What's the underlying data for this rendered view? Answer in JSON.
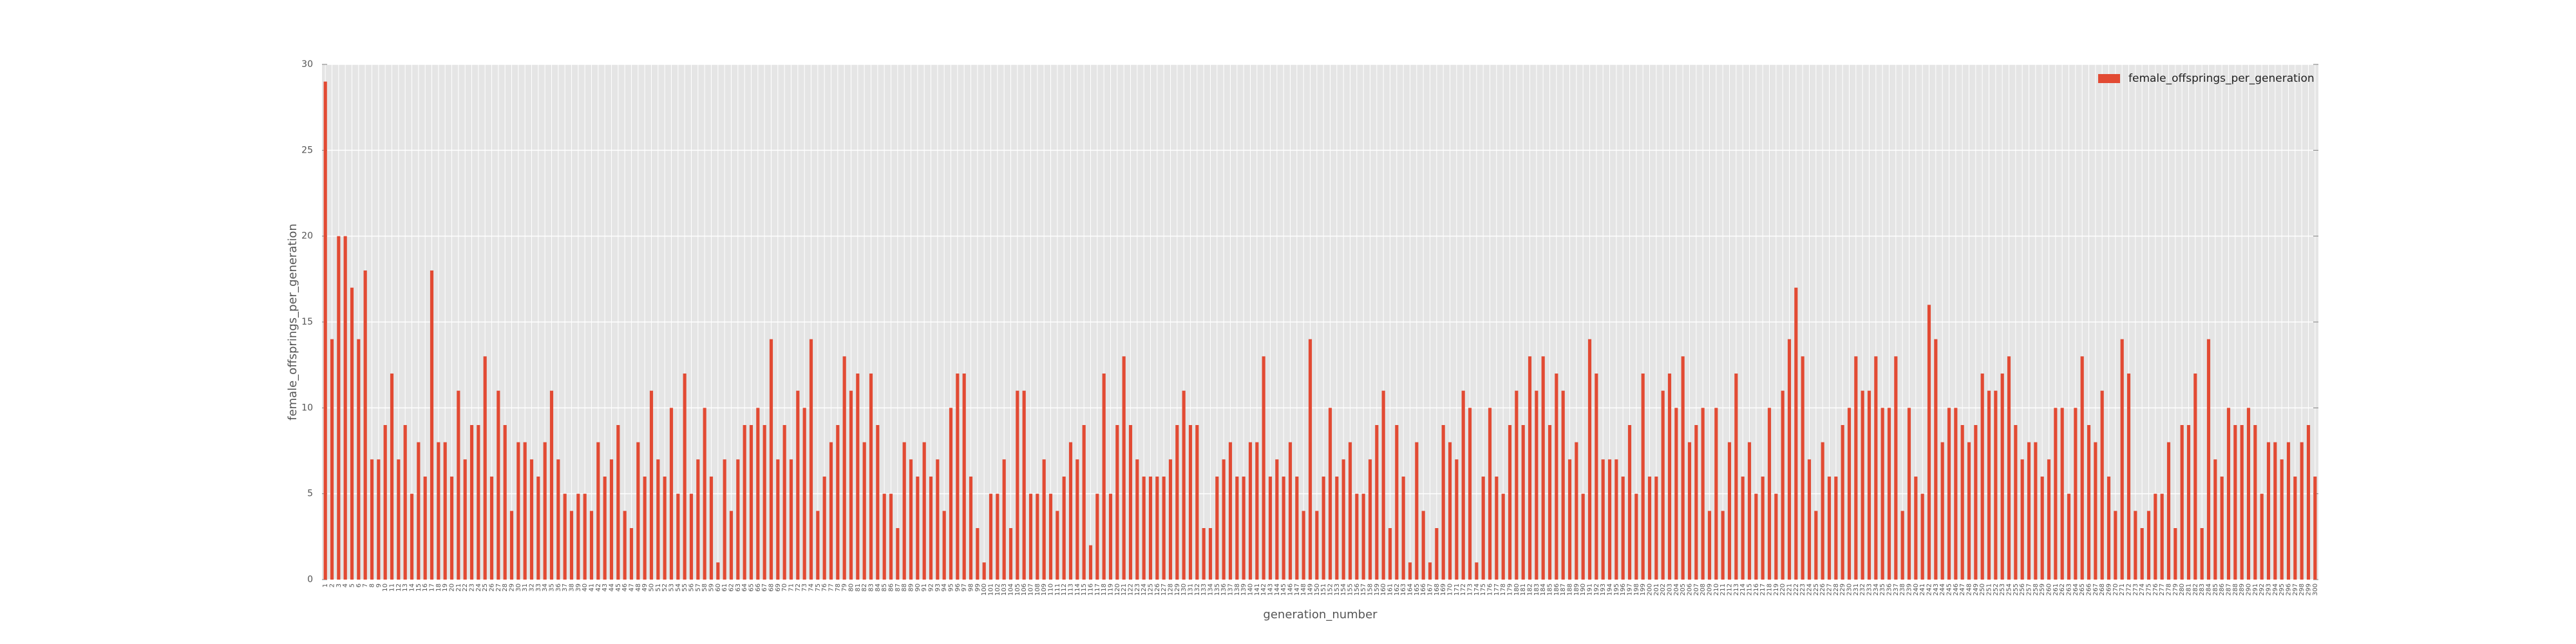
{
  "chart_data": {
    "type": "bar",
    "x_label": "generation_number",
    "y_label": "female_offsprings_per_generation",
    "categories": [
      1,
      2,
      3,
      4,
      5,
      6,
      7,
      8,
      9,
      10,
      11,
      12,
      13,
      14,
      15,
      16,
      17,
      18,
      19,
      20,
      21,
      22,
      23,
      24,
      25,
      26,
      27,
      28,
      29,
      30,
      31,
      32,
      33,
      34,
      35,
      36,
      37,
      38,
      39,
      40,
      41,
      42,
      43,
      44,
      45,
      46,
      47,
      48,
      49,
      50,
      51,
      52,
      53,
      54,
      55,
      56,
      57,
      58,
      59,
      60,
      61,
      62,
      63,
      64,
      65,
      66,
      67,
      68,
      69,
      70,
      71,
      72,
      73,
      74,
      75,
      76,
      77,
      78,
      79,
      80,
      81,
      82,
      83,
      84,
      85,
      86,
      87,
      88,
      89,
      90,
      91,
      92,
      93,
      94,
      95,
      96,
      97,
      98,
      99,
      100,
      101,
      102,
      103,
      104,
      105,
      106,
      107,
      108,
      109,
      110,
      111,
      112,
      113,
      114,
      115,
      116,
      117,
      118,
      119,
      120,
      121,
      122,
      123,
      124,
      125,
      126,
      127,
      128,
      129,
      130,
      131,
      132,
      133,
      134,
      135,
      136,
      137,
      138,
      139,
      140,
      141,
      142,
      143,
      144,
      145,
      146,
      147,
      148,
      149,
      150,
      151,
      152,
      153,
      154,
      155,
      156,
      157,
      158,
      159,
      160,
      161,
      162,
      163,
      164,
      165,
      166,
      167,
      168,
      169,
      170,
      171,
      172,
      173,
      174,
      175,
      176,
      177,
      178,
      179,
      180,
      181,
      182,
      183,
      184,
      185,
      186,
      187,
      188,
      189,
      190,
      191,
      192,
      193,
      194,
      195,
      196,
      197,
      198,
      199,
      200,
      201,
      202,
      203,
      204,
      205,
      206,
      207,
      208,
      209,
      210,
      211,
      212,
      213,
      214,
      215,
      216,
      217,
      218,
      219,
      220,
      221,
      222,
      223,
      224,
      225,
      226,
      227,
      228,
      229,
      230,
      231,
      232,
      233,
      234,
      235,
      236,
      237,
      238,
      239,
      240,
      241,
      242,
      243,
      244,
      245,
      246,
      247,
      248,
      249,
      250,
      251,
      252,
      253,
      254,
      255,
      256,
      257,
      258,
      259,
      260,
      261,
      262,
      263,
      264,
      265,
      266,
      267,
      268,
      269,
      270,
      271,
      272,
      273,
      274,
      275,
      276,
      277,
      278,
      279,
      280,
      281,
      282,
      283,
      284,
      285,
      286,
      287,
      288,
      289,
      290,
      291,
      292,
      293,
      294,
      295,
      296,
      297,
      298,
      299,
      300
    ],
    "series": [
      {
        "name": "female_offsprings_per_generation",
        "color": "#e24a33",
        "values": [
          29,
          14,
          20,
          20,
          17,
          14,
          18,
          7,
          7,
          9,
          12,
          7,
          9,
          5,
          8,
          6,
          18,
          8,
          8,
          6,
          11,
          7,
          9,
          9,
          13,
          6,
          11,
          9,
          4,
          8,
          8,
          7,
          6,
          8,
          11,
          7,
          5,
          4,
          5,
          5,
          4,
          8,
          6,
          7,
          9,
          4,
          3,
          8,
          6,
          11,
          7,
          6,
          10,
          5,
          12,
          5,
          7,
          10,
          6,
          1,
          7,
          4,
          7,
          9,
          9,
          10,
          9,
          14,
          7,
          9,
          7,
          11,
          10,
          14,
          4,
          6,
          8,
          9,
          13,
          11,
          12,
          8,
          12,
          9,
          5,
          5,
          3,
          8,
          7,
          6,
          8,
          6,
          7,
          4,
          10,
          12,
          12,
          6,
          3,
          1,
          5,
          5,
          7,
          3,
          11,
          11,
          5,
          5,
          7,
          5,
          4,
          6,
          8,
          7,
          9,
          2,
          5,
          12,
          5,
          9,
          13,
          9,
          7,
          6,
          6,
          6,
          6,
          7,
          9,
          11,
          9,
          9,
          3,
          3,
          6,
          7,
          8,
          6,
          6,
          8,
          8,
          13,
          6,
          7,
          6,
          8,
          6,
          4,
          14,
          4,
          6,
          10,
          6,
          7,
          8,
          5,
          5,
          7,
          9,
          11,
          3,
          9,
          6,
          1,
          8,
          4,
          1,
          3,
          9,
          8,
          7,
          11,
          10,
          1,
          6,
          10,
          6,
          5,
          9,
          11,
          9,
          13,
          11,
          13,
          9,
          12,
          11,
          7,
          8,
          5,
          14,
          12,
          7,
          7,
          7,
          6,
          9,
          5,
          12,
          6,
          6,
          11,
          12,
          10,
          13,
          8,
          9,
          10,
          4,
          10,
          4,
          8,
          12,
          6,
          8,
          5,
          6,
          10,
          5,
          11,
          14,
          17,
          13,
          7,
          4,
          8,
          6,
          6,
          9,
          10,
          13,
          11,
          11,
          13,
          10,
          10,
          13,
          4,
          10,
          6,
          5,
          16,
          14,
          8,
          10,
          10,
          9,
          8,
          9,
          12,
          11,
          11,
          12,
          13,
          9,
          7,
          8,
          8,
          6,
          7,
          10,
          10,
          5,
          10,
          13,
          9,
          8,
          11,
          6,
          4,
          14,
          12,
          4,
          3,
          4,
          5,
          5,
          8,
          3,
          9,
          9,
          12,
          3,
          14,
          7,
          6,
          10,
          9,
          9,
          10,
          9,
          5,
          8,
          8,
          7,
          8,
          6,
          8,
          9,
          6
        ]
      }
    ],
    "ylim": [
      0,
      30
    ],
    "yticks": [
      0,
      5,
      10,
      15,
      20,
      25,
      30
    ],
    "grid": true,
    "legend": "upper right"
  }
}
